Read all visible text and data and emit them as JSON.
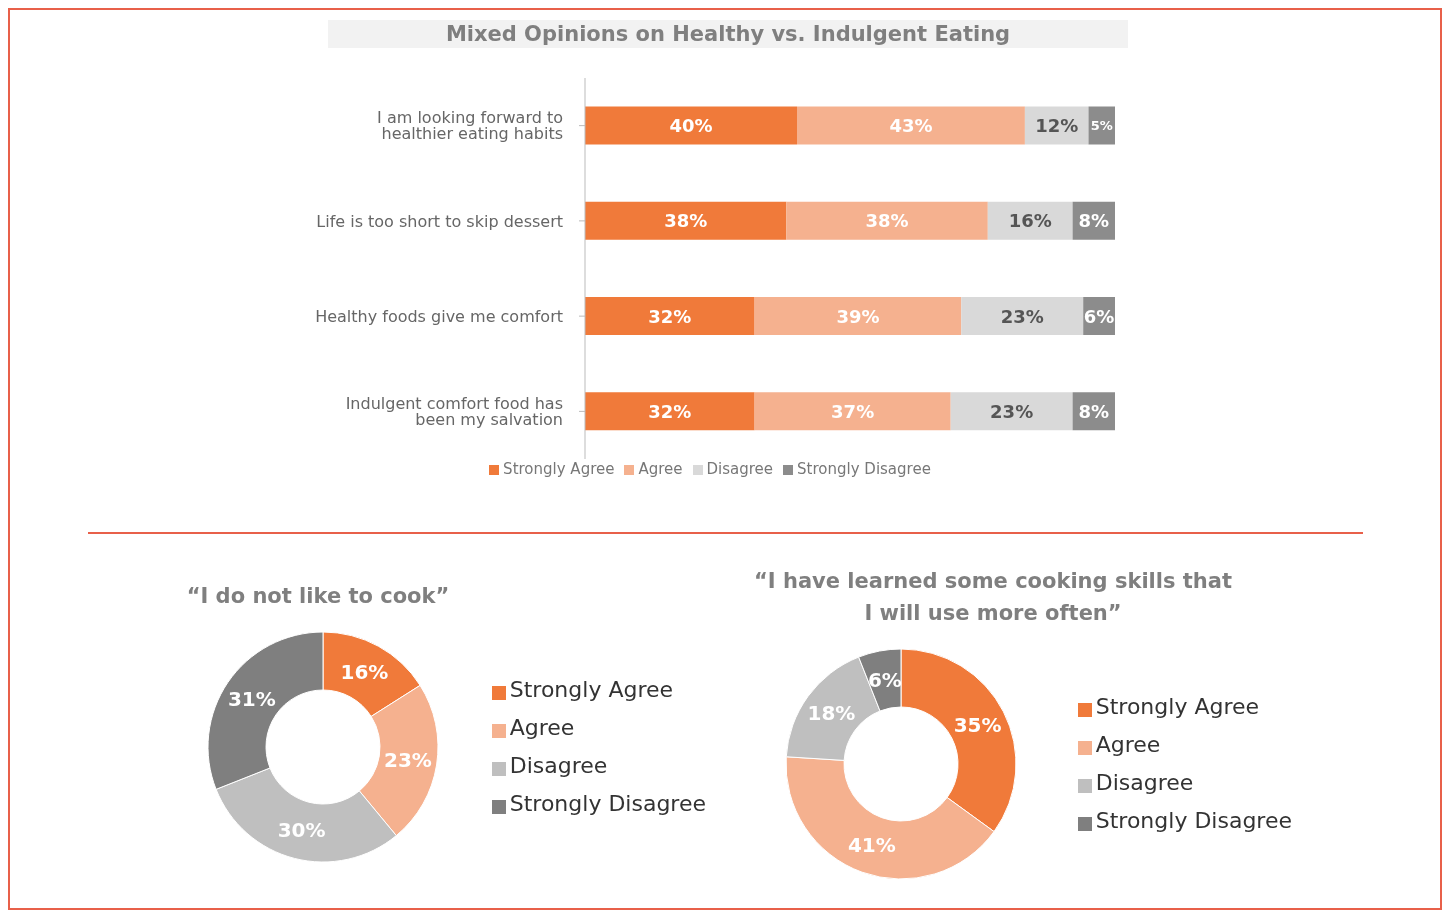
{
  "chart_data": [
    {
      "type": "bar",
      "title": "Mixed Opinions on Healthy vs. Indulgent Eating",
      "orientation": "horizontal",
      "stacked": true,
      "legend": "bottom",
      "categories": [
        "I am looking forward to healthier eating habits",
        "Life is too short to skip dessert",
        "Healthy foods give me comfort",
        "Indulgent comfort food has been my salvation"
      ],
      "series": [
        {
          "name": "Strongly Agree",
          "color": "#f07a3a",
          "values": [
            40,
            38,
            32,
            32
          ],
          "value_labels": [
            "40%",
            "38%",
            "32%",
            "32%"
          ]
        },
        {
          "name": "Agree",
          "color": "#f5b18f",
          "values": [
            43,
            38,
            39,
            37
          ],
          "value_labels": [
            "43%",
            "38%",
            "39%",
            "37%"
          ]
        },
        {
          "name": "Disagree",
          "color": "#d9d9d9",
          "values": [
            12,
            16,
            23,
            23
          ],
          "value_labels": [
            "12%",
            "16%",
            "23%",
            "23%"
          ]
        },
        {
          "name": "Strongly Disagree",
          "color": "#8c8c8c",
          "values": [
            5,
            8,
            6,
            8
          ],
          "value_labels": [
            "5%",
            "8%",
            "6%",
            "8%"
          ]
        }
      ]
    },
    {
      "type": "donut",
      "title": "“I do not like to cook”",
      "legend": "right",
      "categories": [
        "Strongly Agree",
        "Agree",
        "Disagree",
        "Strongly Disagree"
      ],
      "values": [
        16,
        23,
        30,
        31
      ],
      "value_labels": [
        "16%",
        "23%",
        "30%",
        "31%"
      ],
      "colors": [
        "#f07a3a",
        "#f5b18f",
        "#bfbfbf",
        "#7f7f7f"
      ]
    },
    {
      "type": "donut",
      "title": "“I have learned some cooking skills that I will use more often”",
      "legend": "right",
      "categories": [
        "Strongly Agree",
        "Agree",
        "Disagree",
        "Strongly Disagree"
      ],
      "values": [
        35,
        41,
        18,
        6
      ],
      "value_labels": [
        "35%",
        "41%",
        "18%",
        "6%"
      ],
      "colors": [
        "#f07a3a",
        "#f5b18f",
        "#bfbfbf",
        "#7f7f7f"
      ]
    }
  ]
}
